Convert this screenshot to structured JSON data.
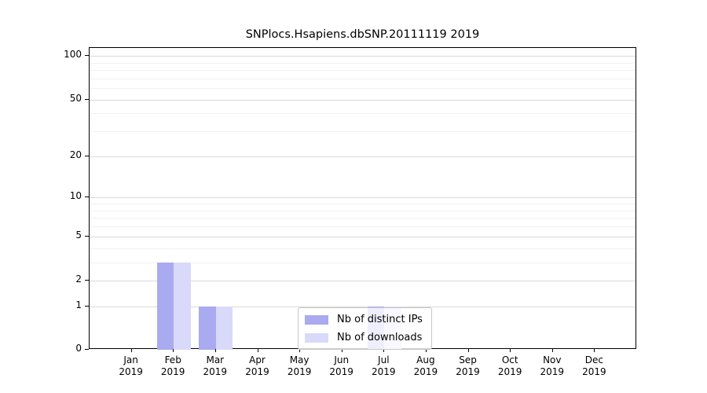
{
  "chart_data": {
    "type": "bar",
    "title": "SNPlocs.Hsapiens.dbSNP.20111119 2019",
    "months": [
      "Jan",
      "Feb",
      "Mar",
      "Apr",
      "May",
      "Jun",
      "Jul",
      "Aug",
      "Sep",
      "Oct",
      "Nov",
      "Dec"
    ],
    "year": "2019",
    "series": [
      {
        "name": "Nb of distinct IPs",
        "color": "#aaaaf0",
        "values": [
          0,
          3,
          1,
          0,
          0,
          0,
          1,
          0,
          0,
          0,
          0,
          0
        ]
      },
      {
        "name": "Nb of downloads",
        "color": "#d9d9fa",
        "values": [
          0,
          3,
          1,
          0,
          0,
          0,
          1,
          0,
          0,
          0,
          0,
          0
        ]
      }
    ],
    "yscale": "log1p",
    "ylim": [
      0,
      113
    ],
    "ytick_values": [
      0,
      1,
      2,
      5,
      10,
      20,
      50,
      100
    ],
    "ytick_labels": [
      "0",
      "1",
      "2",
      "5",
      "10",
      "20",
      "50",
      "100"
    ],
    "minor_grid_values": [
      3,
      4,
      6,
      7,
      8,
      9,
      30,
      40,
      60,
      70,
      80,
      90
    ],
    "grid": true,
    "legend_position": "inside-bottom-center",
    "colors": {
      "axis": "#000000",
      "grid_major": "#d9d9d9",
      "grid_minor": "#f1f1f1",
      "legend_border": "#c8c8c8",
      "legend_background": "rgba(255,255,255,0.8)",
      "text": "#000000",
      "plot_background": "#ffffff"
    }
  }
}
